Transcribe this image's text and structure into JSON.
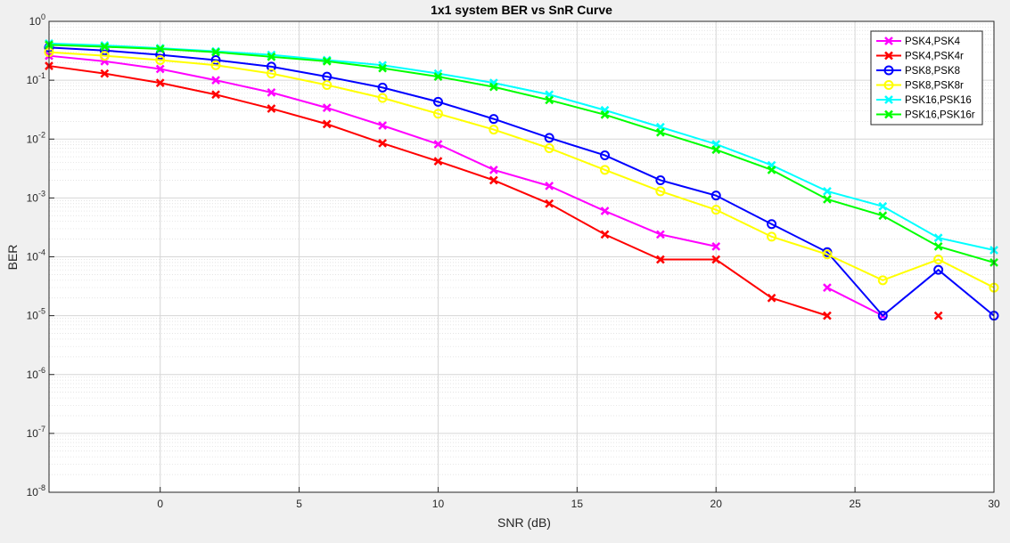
{
  "chart_data": {
    "type": "line",
    "title": "1x1 system BER vs SnR Curve",
    "xlabel": "SNR (dB)",
    "ylabel": "BER",
    "xlim": [
      -4,
      30
    ],
    "ylim": [
      1e-08,
      1
    ],
    "yscale": "log",
    "grid": true,
    "minor_grid": true,
    "legend_position": "top-right",
    "x_ticks": [
      "0",
      "5",
      "10",
      "15",
      "20",
      "25",
      "30"
    ],
    "y_ticks": [
      {
        "base": "10",
        "exp": "-8"
      },
      {
        "base": "10",
        "exp": "-7"
      },
      {
        "base": "10",
        "exp": "-6"
      },
      {
        "base": "10",
        "exp": "-5"
      },
      {
        "base": "10",
        "exp": "-4"
      },
      {
        "base": "10",
        "exp": "-3"
      },
      {
        "base": "10",
        "exp": "-2"
      },
      {
        "base": "10",
        "exp": "-1"
      },
      {
        "base": "10",
        "exp": "0"
      }
    ],
    "series": [
      {
        "name": "PSK4,PSK4",
        "color": "#ff00ff",
        "marker": "x",
        "points": [
          [
            -4,
            0.26
          ],
          [
            -2,
            0.21
          ],
          [
            0,
            0.155
          ],
          [
            2,
            0.1
          ],
          [
            4,
            0.062
          ],
          [
            6,
            0.034
          ],
          [
            8,
            0.017
          ],
          [
            10,
            0.0082
          ],
          [
            12,
            0.003
          ],
          [
            14,
            0.0016
          ],
          [
            16,
            0.0006
          ],
          [
            18,
            0.00024
          ],
          [
            20,
            0.00015
          ],
          [
            22,
            null
          ],
          [
            24,
            3e-05
          ],
          [
            26,
            1e-05
          ],
          [
            28,
            null
          ],
          [
            30,
            null
          ]
        ]
      },
      {
        "name": "PSK4,PSK4r",
        "color": "#ff0000",
        "marker": "x",
        "points": [
          [
            -4,
            0.175
          ],
          [
            -2,
            0.13
          ],
          [
            0,
            0.09
          ],
          [
            2,
            0.057
          ],
          [
            4,
            0.033
          ],
          [
            6,
            0.018
          ],
          [
            8,
            0.0085
          ],
          [
            10,
            0.0042
          ],
          [
            12,
            0.002
          ],
          [
            14,
            0.0008
          ],
          [
            16,
            0.00024
          ],
          [
            18,
            9e-05
          ],
          [
            20,
            9e-05
          ],
          [
            22,
            2e-05
          ],
          [
            24,
            1e-05
          ],
          [
            26,
            null
          ],
          [
            28,
            1e-05
          ],
          [
            30,
            null
          ]
        ]
      },
      {
        "name": "PSK8,PSK8",
        "color": "#0000ff",
        "marker": "o",
        "points": [
          [
            -4,
            0.36
          ],
          [
            -2,
            0.32
          ],
          [
            0,
            0.27
          ],
          [
            2,
            0.22
          ],
          [
            4,
            0.17
          ],
          [
            6,
            0.115
          ],
          [
            8,
            0.075
          ],
          [
            10,
            0.043
          ],
          [
            12,
            0.022
          ],
          [
            14,
            0.0105
          ],
          [
            16,
            0.0053
          ],
          [
            18,
            0.002
          ],
          [
            20,
            0.0011
          ],
          [
            22,
            0.00036
          ],
          [
            24,
            0.00012
          ],
          [
            26,
            1e-05
          ],
          [
            28,
            6e-05
          ],
          [
            30,
            1e-05
          ]
        ]
      },
      {
        "name": "PSK8,PSK8r",
        "color": "#ffff00",
        "marker": "o",
        "points": [
          [
            -4,
            0.3
          ],
          [
            -2,
            0.26
          ],
          [
            0,
            0.22
          ],
          [
            2,
            0.18
          ],
          [
            4,
            0.13
          ],
          [
            6,
            0.083
          ],
          [
            8,
            0.05
          ],
          [
            10,
            0.027
          ],
          [
            12,
            0.0145
          ],
          [
            14,
            0.007
          ],
          [
            16,
            0.003
          ],
          [
            18,
            0.0013
          ],
          [
            20,
            0.00063
          ],
          [
            22,
            0.00022
          ],
          [
            24,
            0.00011
          ],
          [
            26,
            4e-05
          ],
          [
            28,
            9e-05
          ],
          [
            30,
            3e-05
          ]
        ]
      },
      {
        "name": "PSK16,PSK16",
        "color": "#00ffff",
        "marker": "x",
        "points": [
          [
            -4,
            0.42
          ],
          [
            -2,
            0.39
          ],
          [
            0,
            0.35
          ],
          [
            2,
            0.31
          ],
          [
            4,
            0.27
          ],
          [
            6,
            0.22
          ],
          [
            8,
            0.18
          ],
          [
            10,
            0.13
          ],
          [
            12,
            0.09
          ],
          [
            14,
            0.057
          ],
          [
            16,
            0.031
          ],
          [
            18,
            0.016
          ],
          [
            20,
            0.0082
          ],
          [
            22,
            0.0036
          ],
          [
            24,
            0.0013
          ],
          [
            26,
            0.00072
          ],
          [
            28,
            0.00021
          ],
          [
            30,
            0.00013
          ]
        ]
      },
      {
        "name": "PSK16,PSK16r",
        "color": "#00ff00",
        "marker": "x",
        "points": [
          [
            -4,
            0.4
          ],
          [
            -2,
            0.37
          ],
          [
            0,
            0.34
          ],
          [
            2,
            0.3
          ],
          [
            4,
            0.25
          ],
          [
            6,
            0.21
          ],
          [
            8,
            0.16
          ],
          [
            10,
            0.115
          ],
          [
            12,
            0.077
          ],
          [
            14,
            0.046
          ],
          [
            16,
            0.026
          ],
          [
            18,
            0.013
          ],
          [
            20,
            0.0066
          ],
          [
            22,
            0.003
          ],
          [
            24,
            0.00095
          ],
          [
            26,
            0.0005
          ],
          [
            28,
            0.00015
          ],
          [
            30,
            8e-05
          ]
        ]
      }
    ]
  }
}
